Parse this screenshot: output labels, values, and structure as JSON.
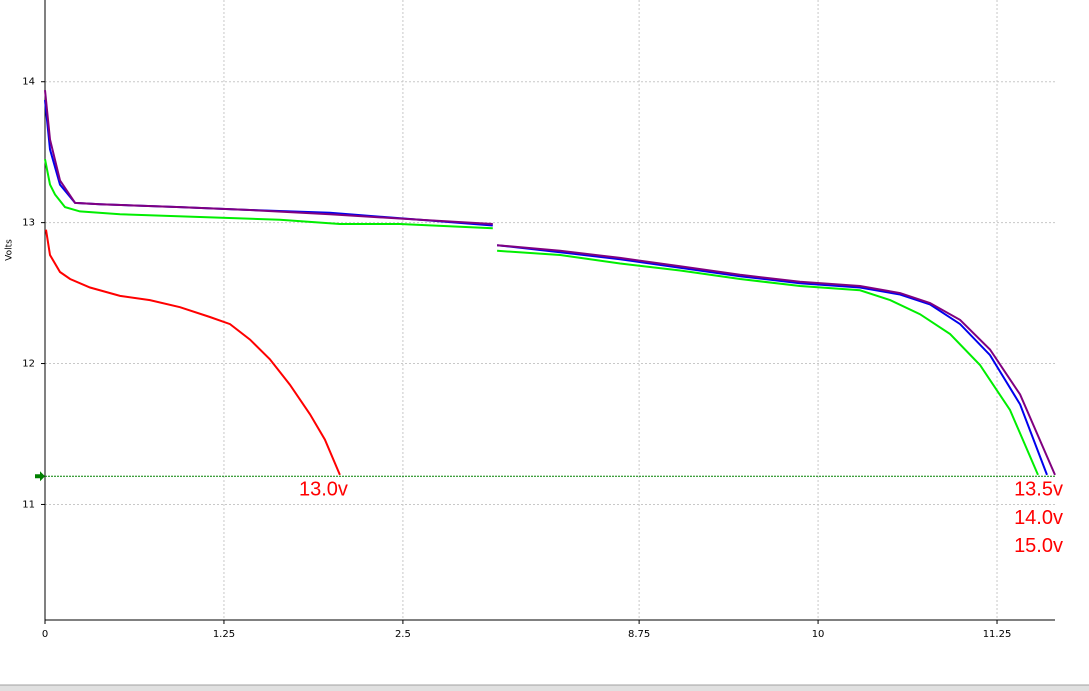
{
  "chart_data": {
    "type": "line",
    "y_label": "Volts",
    "ylim": [
      10.18,
      14.58
    ],
    "yticks": [
      11,
      12,
      13,
      14
    ],
    "xlim": [
      0,
      11.655
    ],
    "xbreak": [
      3.13,
      7.73
    ],
    "xticks": [
      0,
      1.25,
      2.5,
      8.75,
      10,
      11.25
    ],
    "grid": true,
    "reference_line": {
      "value": 11.2,
      "color": "#008000"
    },
    "series": [
      {
        "color": "#ff0000",
        "x": [
          0.007,
          0.035,
          0.105,
          0.175,
          0.314,
          0.524,
          0.733,
          0.943,
          1.152,
          1.292,
          1.432,
          1.571,
          1.711,
          1.851,
          1.955,
          2.06
        ],
        "values": [
          12.95,
          12.77,
          12.65,
          12.6,
          12.54,
          12.48,
          12.45,
          12.4,
          12.33,
          12.28,
          12.17,
          12.03,
          11.85,
          11.64,
          11.46,
          11.21
        ]
      },
      {
        "color": "#00ee00",
        "x": [
          0,
          0.035,
          0.07,
          0.14,
          0.244,
          0.524,
          1.082,
          1.641,
          2.06,
          2.479,
          3.128,
          null,
          7.758,
          8.198,
          8.617,
          9.036,
          9.455,
          9.874,
          10.293,
          10.503,
          10.712,
          10.922,
          11.131,
          11.341,
          11.536
        ],
        "values": [
          13.45,
          13.27,
          13.2,
          13.11,
          13.08,
          13.06,
          13.04,
          13.02,
          12.99,
          12.99,
          12.96,
          null,
          12.8,
          12.77,
          12.71,
          12.66,
          12.6,
          12.55,
          12.52,
          12.45,
          12.35,
          12.21,
          11.99,
          11.67,
          11.21
        ]
      },
      {
        "color": "#0000ee",
        "x": [
          0,
          0.035,
          0.105,
          0.21,
          0.384,
          0.943,
          1.432,
          1.99,
          2.619,
          3.128,
          null,
          7.758,
          8.198,
          8.617,
          9.036,
          9.455,
          9.874,
          10.293,
          10.573,
          10.782,
          10.992,
          11.201,
          11.411,
          11.599
        ],
        "values": [
          13.87,
          13.52,
          13.27,
          13.14,
          13.13,
          13.11,
          13.09,
          13.07,
          13.02,
          12.98,
          null,
          12.84,
          12.79,
          12.74,
          12.68,
          12.62,
          12.57,
          12.54,
          12.49,
          12.42,
          12.28,
          12.06,
          11.71,
          11.21
        ]
      },
      {
        "color": "#800080",
        "x": [
          0,
          0.035,
          0.105,
          0.21,
          0.384,
          0.943,
          1.432,
          1.99,
          2.619,
          3.128,
          null,
          7.758,
          8.198,
          8.617,
          9.036,
          9.455,
          9.874,
          10.293,
          10.573,
          10.782,
          10.992,
          11.201,
          11.411,
          11.655
        ],
        "values": [
          13.94,
          13.59,
          13.3,
          13.14,
          13.13,
          13.11,
          13.09,
          13.06,
          13.02,
          12.99,
          null,
          12.84,
          12.8,
          12.75,
          12.69,
          12.63,
          12.58,
          12.55,
          12.5,
          12.43,
          12.31,
          12.1,
          11.78,
          11.21
        ]
      }
    ],
    "annotations": [
      {
        "text": "13.0v",
        "x": 2.06,
        "y": 11.1
      },
      {
        "text": "13.5v",
        "x": 11.655,
        "y": 11.1
      },
      {
        "text": "14.0v",
        "x": 11.655,
        "y": 10.9
      },
      {
        "text": "15.0v",
        "x": 11.655,
        "y": 10.7
      }
    ]
  }
}
